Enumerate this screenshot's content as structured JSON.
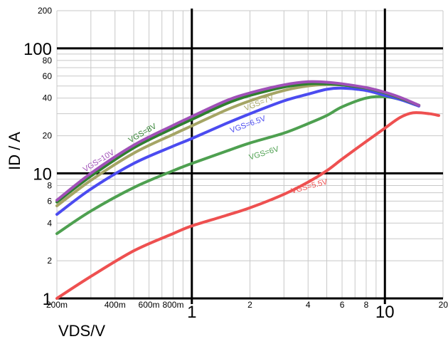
{
  "chart_data": {
    "type": "line",
    "xlabel": "VDS/V",
    "ylabel": "ID / A",
    "xscale": "log",
    "yscale": "log",
    "xlim": [
      0.2,
      20
    ],
    "ylim": [
      1,
      200
    ],
    "grid": true,
    "x_ticks": [
      {
        "v": 0.2,
        "label": "200m",
        "major": false
      },
      {
        "v": 0.4,
        "label": "400m",
        "major": false
      },
      {
        "v": 0.6,
        "label": "600m",
        "major": false
      },
      {
        "v": 0.8,
        "label": "800m",
        "major": false
      },
      {
        "v": 1,
        "label": "1",
        "major": true
      },
      {
        "v": 2,
        "label": "2",
        "major": false
      },
      {
        "v": 4,
        "label": "4",
        "major": false
      },
      {
        "v": 6,
        "label": "6",
        "major": false
      },
      {
        "v": 8,
        "label": "8",
        "major": false
      },
      {
        "v": 10,
        "label": "10",
        "major": true
      },
      {
        "v": 20,
        "label": "20",
        "major": false
      }
    ],
    "y_ticks": [
      {
        "v": 1,
        "label": "1",
        "major": true
      },
      {
        "v": 2,
        "label": "2",
        "major": false
      },
      {
        "v": 4,
        "label": "4",
        "major": false
      },
      {
        "v": 6,
        "label": "6",
        "major": false
      },
      {
        "v": 8,
        "label": "8",
        "major": false
      },
      {
        "v": 10,
        "label": "10",
        "major": true
      },
      {
        "v": 20,
        "label": "20",
        "major": false
      },
      {
        "v": 40,
        "label": "40",
        "major": false
      },
      {
        "v": 60,
        "label": "60",
        "major": false
      },
      {
        "v": 80,
        "label": "80",
        "major": false
      },
      {
        "v": 100,
        "label": "100",
        "major": true
      },
      {
        "v": 200,
        "label": "200",
        "major": false
      }
    ],
    "series": [
      {
        "name": "VGS=5.5V",
        "color": "#ee5050",
        "points": [
          [
            0.2,
            1.0
          ],
          [
            0.3,
            1.5
          ],
          [
            0.5,
            2.4
          ],
          [
            0.8,
            3.3
          ],
          [
            1.0,
            3.8
          ],
          [
            1.5,
            4.6
          ],
          [
            2.0,
            5.3
          ],
          [
            3.0,
            6.8
          ],
          [
            4.0,
            8.5
          ],
          [
            5.0,
            10.5
          ],
          [
            6.0,
            13.0
          ],
          [
            8.0,
            18.0
          ],
          [
            10.0,
            23.0
          ],
          [
            12.0,
            28.0
          ],
          [
            14.0,
            30.5
          ],
          [
            17.0,
            30.0
          ],
          [
            19.0,
            29.0
          ]
        ]
      },
      {
        "name": "VGS=6V",
        "color": "#4ea050",
        "points": [
          [
            0.2,
            3.3
          ],
          [
            0.3,
            5.0
          ],
          [
            0.5,
            7.7
          ],
          [
            0.8,
            10.5
          ],
          [
            1.0,
            12.0
          ],
          [
            1.5,
            15.0
          ],
          [
            2.0,
            17.5
          ],
          [
            3.0,
            21.0
          ],
          [
            4.0,
            25.0
          ],
          [
            5.0,
            29.0
          ],
          [
            6.0,
            34.0
          ],
          [
            8.0,
            40.0
          ],
          [
            10.0,
            41.0
          ],
          [
            12.0,
            39.0
          ],
          [
            15.0,
            35.0
          ]
        ]
      },
      {
        "name": "VGS=6.5V",
        "color": "#4b4bf0",
        "points": [
          [
            0.2,
            4.7
          ],
          [
            0.3,
            7.5
          ],
          [
            0.5,
            12.0
          ],
          [
            0.8,
            16.5
          ],
          [
            1.0,
            19.0
          ],
          [
            1.5,
            25.0
          ],
          [
            2.0,
            30.0
          ],
          [
            3.0,
            38.0
          ],
          [
            4.0,
            43.0
          ],
          [
            5.0,
            47.0
          ],
          [
            6.0,
            48.0
          ],
          [
            8.0,
            46.0
          ],
          [
            10.0,
            42.0
          ],
          [
            12.0,
            39.0
          ],
          [
            15.0,
            34.5
          ]
        ]
      },
      {
        "name": "VGS=7V",
        "color": "#a5a565",
        "points": [
          [
            0.2,
            5.5
          ],
          [
            0.3,
            8.8
          ],
          [
            0.5,
            14.5
          ],
          [
            0.8,
            20.5
          ],
          [
            1.0,
            24.0
          ],
          [
            1.5,
            32.0
          ],
          [
            2.0,
            38.0
          ],
          [
            3.0,
            46.0
          ],
          [
            4.0,
            50.0
          ],
          [
            5.0,
            51.5
          ],
          [
            6.0,
            51.0
          ],
          [
            8.0,
            48.0
          ],
          [
            10.0,
            44.0
          ],
          [
            12.0,
            40.0
          ],
          [
            15.0,
            35.0
          ]
        ]
      },
      {
        "name": "VGS=8V",
        "color": "#2f7f2f",
        "points": [
          [
            0.2,
            5.9
          ],
          [
            0.3,
            9.5
          ],
          [
            0.5,
            16.0
          ],
          [
            0.8,
            23.0
          ],
          [
            1.0,
            27.0
          ],
          [
            1.5,
            36.0
          ],
          [
            2.0,
            42.0
          ],
          [
            3.0,
            49.0
          ],
          [
            4.0,
            52.0
          ],
          [
            5.0,
            52.0
          ],
          [
            6.0,
            51.0
          ],
          [
            8.0,
            48.0
          ],
          [
            10.0,
            44.0
          ],
          [
            12.0,
            40.0
          ],
          [
            15.0,
            35.0
          ]
        ]
      },
      {
        "name": "VGS=10V",
        "color": "#a050b8",
        "points": [
          [
            0.2,
            6.1
          ],
          [
            0.3,
            10.0
          ],
          [
            0.5,
            16.8
          ],
          [
            0.8,
            24.2
          ],
          [
            1.0,
            28.5
          ],
          [
            1.5,
            38.0
          ],
          [
            2.0,
            44.0
          ],
          [
            3.0,
            51.0
          ],
          [
            4.0,
            54.0
          ],
          [
            5.0,
            53.5
          ],
          [
            6.0,
            52.0
          ],
          [
            8.0,
            48.5
          ],
          [
            10.0,
            44.5
          ],
          [
            12.0,
            40.5
          ],
          [
            15.0,
            35.0
          ]
        ]
      }
    ]
  }
}
